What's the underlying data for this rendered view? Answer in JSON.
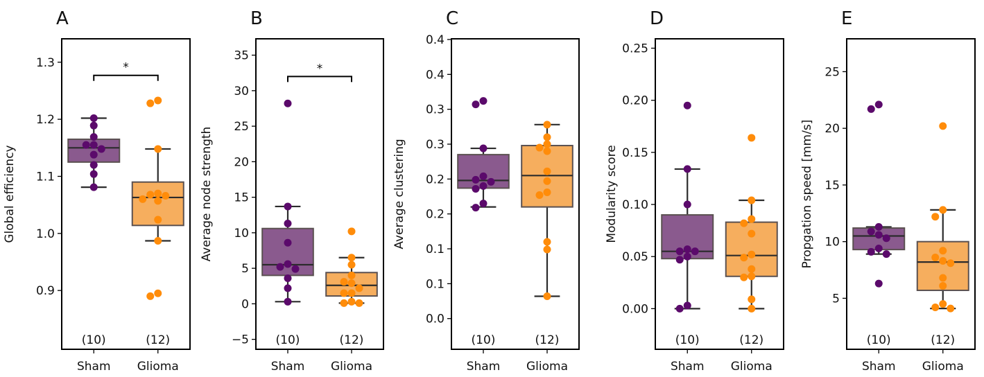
{
  "chart_data": [
    {
      "type": "box",
      "panel_label": "A",
      "ylabel": "Global efficiency",
      "ylim": [
        0.797,
        1.341
      ],
      "yticks": [
        0.9,
        1.0,
        1.1,
        1.2,
        1.3
      ],
      "ytick_labels": [
        "0.9",
        "1.0",
        "1.1",
        "1.2",
        "1.3"
      ],
      "categories": [
        "Sham",
        "Glioma"
      ],
      "counts": [
        "(10)",
        "(12)"
      ],
      "significance": {
        "label": "*",
        "y": 1.277
      },
      "groups": [
        {
          "name": "Sham",
          "q1": 1.125,
          "median": 1.15,
          "q3": 1.165,
          "whisker_low": 1.081,
          "whisker_high": 1.202,
          "points": [
            1.202,
            1.189,
            1.169,
            1.155,
            1.155,
            1.148,
            1.138,
            1.12,
            1.104,
            1.081
          ]
        },
        {
          "name": "Glioma",
          "q1": 1.014,
          "median": 1.063,
          "q3": 1.09,
          "whisker_low": 0.987,
          "whisker_high": 1.148,
          "points": [
            1.233,
            1.228,
            1.148,
            1.07,
            1.068,
            1.066,
            1.06,
            1.057,
            1.024,
            0.987,
            0.895,
            0.89
          ]
        }
      ]
    },
    {
      "type": "box",
      "panel_label": "B",
      "ylabel": "Average node strength",
      "ylim": [
        -6.4,
        37.3
      ],
      "yticks": [
        -5,
        0,
        5,
        10,
        15,
        20,
        25,
        30,
        35
      ],
      "ytick_labels": [
        "−5",
        "0",
        "5",
        "10",
        "15",
        "20",
        "25",
        "30",
        "35"
      ],
      "categories": [
        "Sham",
        "Glioma"
      ],
      "counts": [
        "(10)",
        "(12)"
      ],
      "significance": {
        "label": "*",
        "y": 32.0
      },
      "groups": [
        {
          "name": "Sham",
          "q1": 4.0,
          "median": 5.5,
          "q3": 10.6,
          "whisker_low": 0.3,
          "whisker_high": 13.7,
          "points": [
            28.2,
            13.7,
            11.3,
            8.6,
            5.6,
            5.2,
            4.9,
            3.6,
            2.2,
            0.3
          ]
        },
        {
          "name": "Glioma",
          "q1": 1.1,
          "median": 2.6,
          "q3": 4.4,
          "whisker_low": 0.1,
          "whisker_high": 6.5,
          "points": [
            10.2,
            6.5,
            5.5,
            4.0,
            3.1,
            2.9,
            2.2,
            1.5,
            1.5,
            0.3,
            0.1,
            0.1
          ]
        }
      ]
    },
    {
      "type": "box",
      "panel_label": "C",
      "ylabel": "Average clustering",
      "ylim": [
        -0.044,
        0.401
      ],
      "yticks": [
        0.0,
        0.05,
        0.1,
        0.15,
        0.2,
        0.25,
        0.3,
        0.35,
        0.4
      ],
      "ytick_labels": [
        "0.0",
        "0.1",
        "0.1",
        "0.2",
        "0.2",
        "0.3",
        "0.3",
        "0.4",
        "0.4"
      ],
      "categories": [
        "Sham",
        "Glioma"
      ],
      "counts": [
        "(10)",
        "(12)"
      ],
      "significance": null,
      "groups": [
        {
          "name": "Sham",
          "q1": 0.187,
          "median": 0.198,
          "q3": 0.235,
          "whisker_low": 0.16,
          "whisker_high": 0.244,
          "points": [
            0.312,
            0.307,
            0.244,
            0.204,
            0.199,
            0.196,
            0.19,
            0.186,
            0.165,
            0.159
          ]
        },
        {
          "name": "Glioma",
          "q1": 0.16,
          "median": 0.205,
          "q3": 0.248,
          "whisker_low": 0.032,
          "whisker_high": 0.278,
          "points": [
            0.278,
            0.26,
            0.25,
            0.245,
            0.24,
            0.211,
            0.197,
            0.181,
            0.177,
            0.11,
            0.099,
            0.032
          ]
        }
      ]
    },
    {
      "type": "box",
      "panel_label": "D",
      "ylabel": "Modularity score",
      "ylim": [
        -0.039,
        0.259
      ],
      "yticks": [
        0.0,
        0.05,
        0.1,
        0.15,
        0.2,
        0.25
      ],
      "ytick_labels": [
        "0.00",
        "0.05",
        "0.10",
        "0.15",
        "0.20",
        "0.25"
      ],
      "categories": [
        "Sham",
        "Glioma"
      ],
      "counts": [
        "(10)",
        "(12)"
      ],
      "significance": null,
      "groups": [
        {
          "name": "Sham",
          "q1": 0.048,
          "median": 0.055,
          "q3": 0.09,
          "whisker_low": 0.0,
          "whisker_high": 0.134,
          "points": [
            0.195,
            0.134,
            0.1,
            0.057,
            0.055,
            0.055,
            0.05,
            0.047,
            0.003,
            0.0
          ]
        },
        {
          "name": "Glioma",
          "q1": 0.031,
          "median": 0.051,
          "q3": 0.083,
          "whisker_low": 0.0,
          "whisker_high": 0.104,
          "points": [
            0.164,
            0.104,
            0.086,
            0.082,
            0.072,
            0.052,
            0.049,
            0.038,
            0.031,
            0.03,
            0.009,
            0.0
          ]
        }
      ]
    },
    {
      "type": "box",
      "panel_label": "E",
      "ylabel": "Propgation speed [mm/s]",
      "ylim": [
        0.5,
        27.9
      ],
      "yticks": [
        5,
        10,
        15,
        20,
        25
      ],
      "ytick_labels": [
        "5",
        "10",
        "15",
        "20",
        "25"
      ],
      "categories": [
        "Sham",
        "Glioma"
      ],
      "counts": [
        "(10)",
        "(12)"
      ],
      "significance": null,
      "groups": [
        {
          "name": "Sham",
          "q1": 9.3,
          "median": 10.5,
          "q3": 11.2,
          "whisker_low": 8.9,
          "whisker_high": 11.3,
          "points": [
            22.1,
            21.7,
            11.3,
            10.9,
            10.6,
            10.3,
            9.4,
            9.1,
            8.9,
            6.3
          ]
        },
        {
          "name": "Glioma",
          "q1": 5.7,
          "median": 8.2,
          "q3": 10.0,
          "whisker_low": 4.1,
          "whisker_high": 12.8,
          "points": [
            20.2,
            12.8,
            12.2,
            9.2,
            8.6,
            8.3,
            8.1,
            6.8,
            6.1,
            4.5,
            4.2,
            4.1
          ]
        }
      ]
    }
  ],
  "colors": {
    "sham_point": "#5b0a6b",
    "sham_box": "#8a5a8e",
    "glioma_point": "#ff8c0a",
    "glioma_box": "#f6ae5e",
    "box_edge": "#5a5050",
    "line": "#2b2b2b"
  }
}
